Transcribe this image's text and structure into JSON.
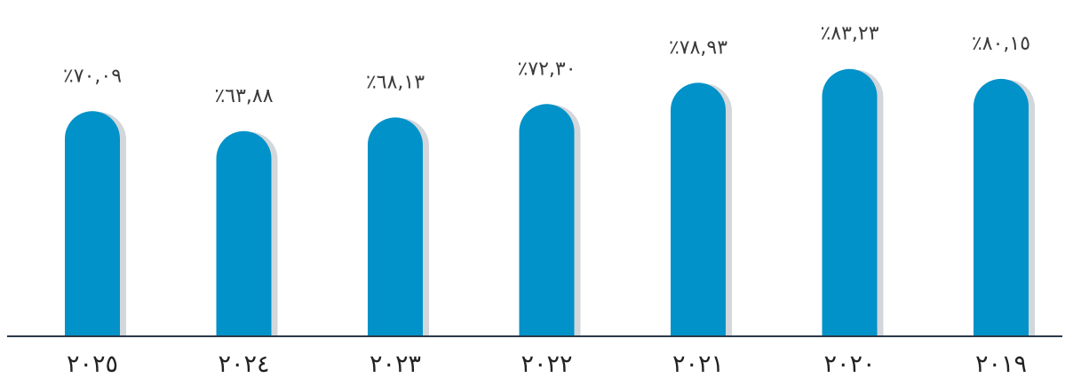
{
  "chart_data": {
    "type": "bar",
    "categories": [
      "٢٠٢٥",
      "٢٠٢٤",
      "٢٠٢٣",
      "٢٠٢٢",
      "٢٠٢١",
      "٢٠٢٠",
      "٢٠١٩"
    ],
    "values": [
      70.09,
      63.88,
      68.13,
      72.3,
      78.93,
      83.23,
      80.15
    ],
    "value_labels": [
      "٪٧٠,٠٩",
      "٪٦٣,٨٨",
      "٪٦٨,١٣",
      "٪٧٢,٣٠",
      "٪٧٨,٩٣",
      "٪٨٣,٢٣",
      "٪٨٠,١٥"
    ],
    "title": "",
    "xlabel": "",
    "ylabel": "",
    "ylim": [
      0,
      100
    ],
    "grid": false,
    "legend": "none",
    "colors": {
      "bar": "#0092c8",
      "shadow": "#d3d6da",
      "axis": "#2b3a4a",
      "label": "#3a3a3a"
    }
  }
}
